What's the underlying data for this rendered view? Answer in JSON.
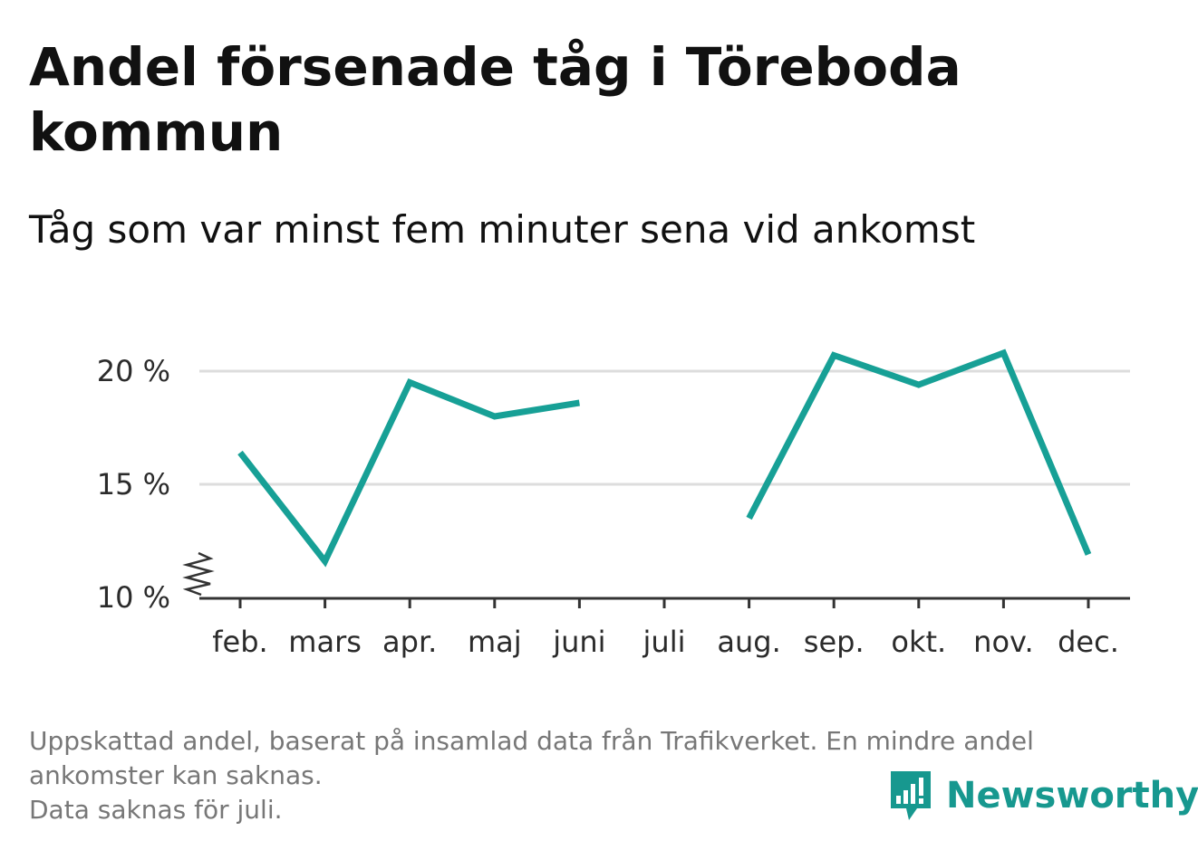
{
  "title": "Andel försenade tåg i Töreboda kommun",
  "subtitle": "Tåg som var minst fem minuter sena vid ankomst",
  "footnote": {
    "line1": "Uppskattad andel, baserat på insamlad data från Trafikverket. En mindre andel",
    "line2": "ankomster kan saknas.",
    "line3": "Data saknas för juli."
  },
  "logo": {
    "text": "Newsworthy",
    "icon": "newsworthy-chart-bubble-icon",
    "color": "#17988f"
  },
  "chart_data": {
    "type": "line",
    "categories": [
      "feb.",
      "mars",
      "apr.",
      "maj",
      "juni",
      "juli",
      "aug.",
      "sep.",
      "okt.",
      "nov.",
      "dec."
    ],
    "series": [
      {
        "values": [
          16.4,
          11.6,
          19.5,
          18.0,
          18.6,
          null,
          13.5,
          20.7,
          19.4,
          20.8,
          11.9
        ]
      }
    ],
    "ylim": [
      10,
      22
    ],
    "yticks": [
      10,
      15,
      20
    ],
    "ytick_labels": [
      "10 %",
      "15 %",
      "20 %"
    ],
    "y_axis_break": true,
    "grid": true,
    "legend": "none",
    "colors": {
      "line": "#17a096",
      "grid": "#dddddd",
      "axis": "#333333"
    }
  }
}
